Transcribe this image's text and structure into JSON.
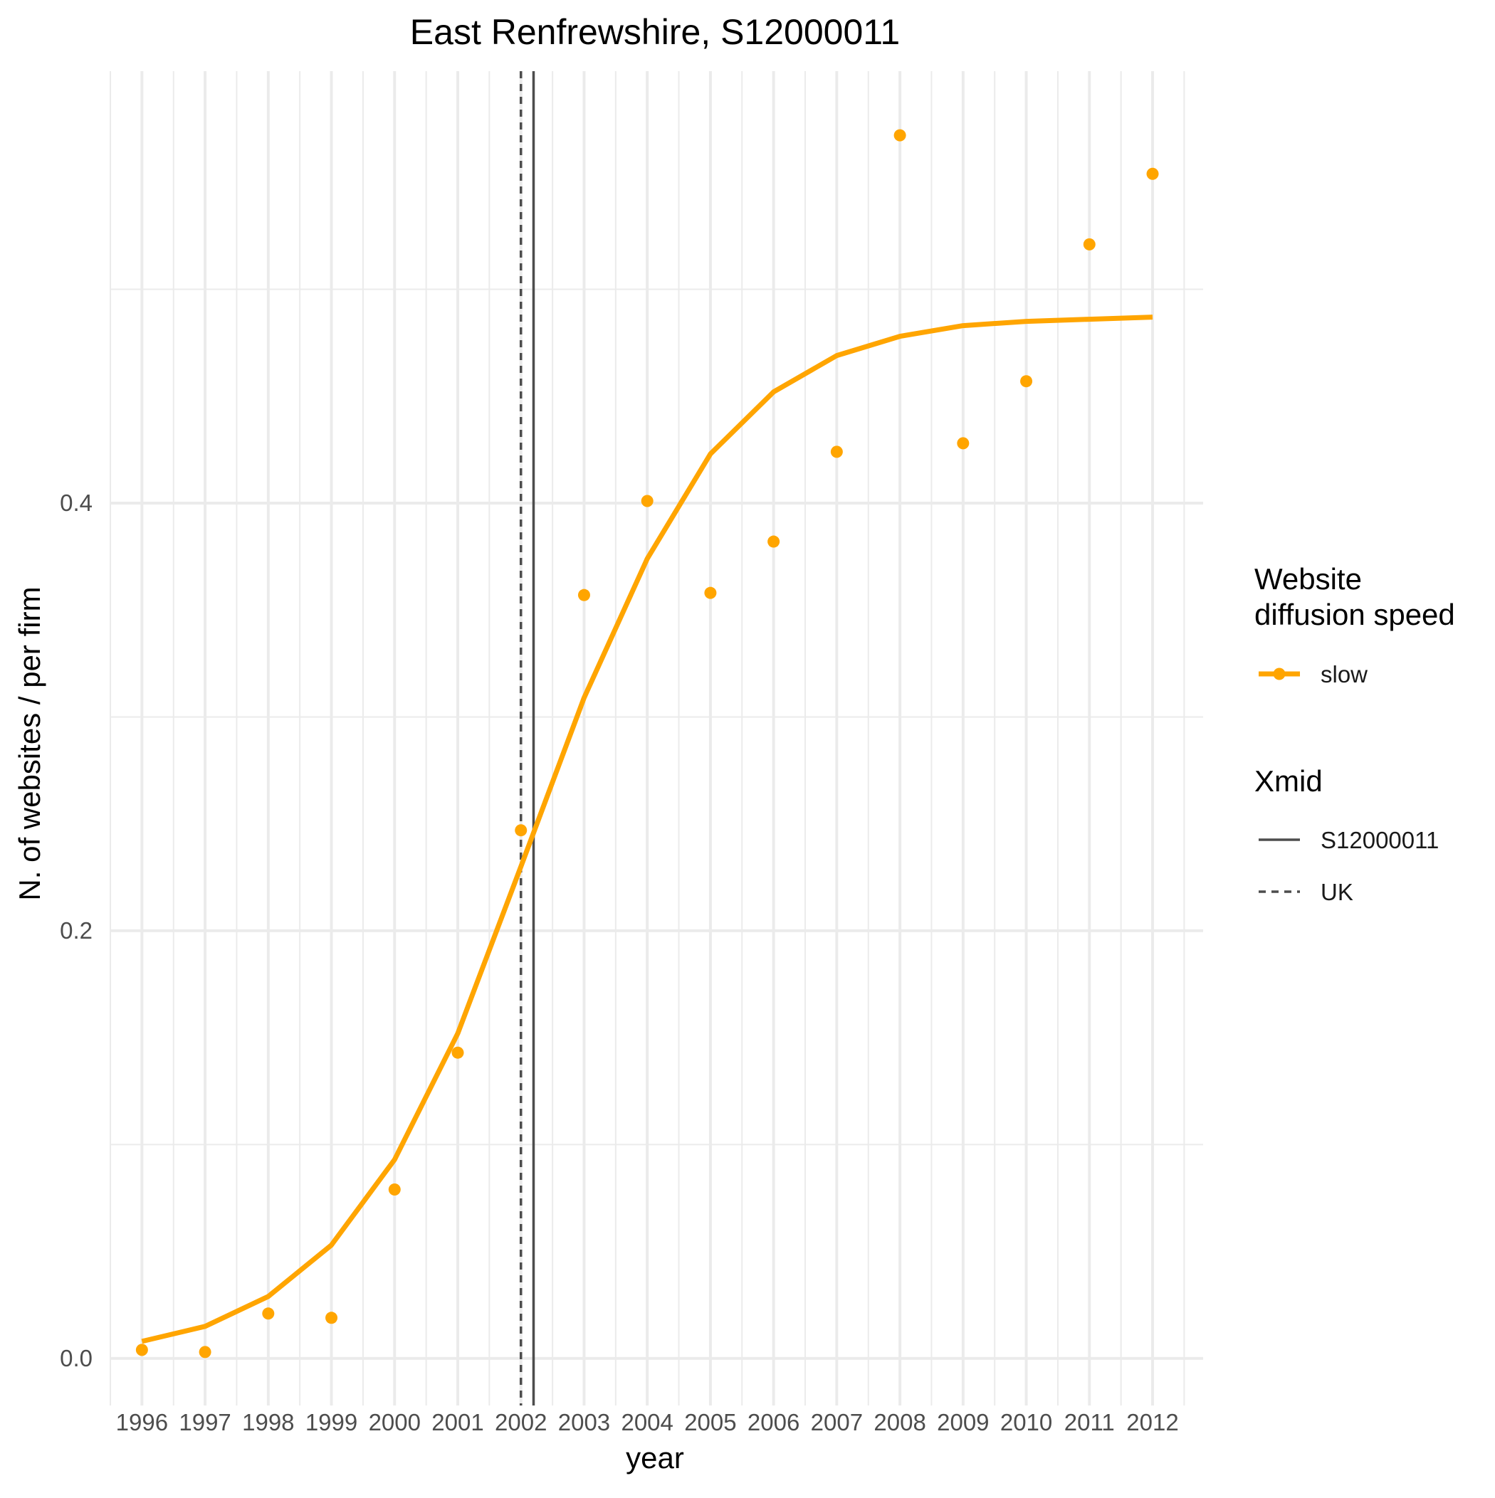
{
  "chart_data": {
    "type": "line",
    "title": "East Renfrewshire, S12000011",
    "xlabel": "year",
    "ylabel": "N. of websites / per firm",
    "x": [
      1996,
      1997,
      1998,
      1999,
      2000,
      2001,
      2002,
      2003,
      2004,
      2005,
      2006,
      2007,
      2008,
      2009,
      2010,
      2011,
      2012
    ],
    "x_tick_labels": [
      "1996",
      "1997",
      "1998",
      "1999",
      "2000",
      "2001",
      "2002",
      "2003",
      "2004",
      "2005",
      "2006",
      "2007",
      "2008",
      "2009",
      "2010",
      "2011",
      "2012"
    ],
    "y_ticks": [
      0.0,
      0.2,
      0.4
    ],
    "y_tick_labels": [
      "0.0",
      "0.2",
      "0.4"
    ],
    "xlim": [
      1995.5,
      2012.8
    ],
    "ylim": [
      -0.022,
      0.602
    ],
    "grid": true,
    "series": [
      {
        "name": "slow",
        "color": "#FFA500",
        "points": [
          0.004,
          0.003,
          0.021,
          0.019,
          0.079,
          0.143,
          0.247,
          0.357,
          0.401,
          0.358,
          0.382,
          0.424,
          0.572,
          0.428,
          0.457,
          0.521,
          0.554
        ],
        "fitted": [
          0.008,
          0.015,
          0.029,
          0.053,
          0.093,
          0.152,
          0.23,
          0.309,
          0.374,
          0.423,
          0.452,
          0.469,
          0.478,
          0.483,
          0.485,
          0.486,
          0.487
        ]
      }
    ],
    "vlines": [
      {
        "name": "S12000011",
        "x": 2002.2,
        "style": "solid",
        "color": "#4d4d4d"
      },
      {
        "name": "UK",
        "x": 2002.0,
        "style": "dashed",
        "color": "#4d4d4d"
      }
    ],
    "legend": {
      "placement": "right",
      "groups": [
        {
          "title_lines": [
            "Website",
            "diffusion speed"
          ],
          "items": [
            "slow"
          ]
        },
        {
          "title_lines": [
            "Xmid"
          ],
          "items": [
            "S12000011",
            "UK"
          ]
        }
      ]
    }
  }
}
